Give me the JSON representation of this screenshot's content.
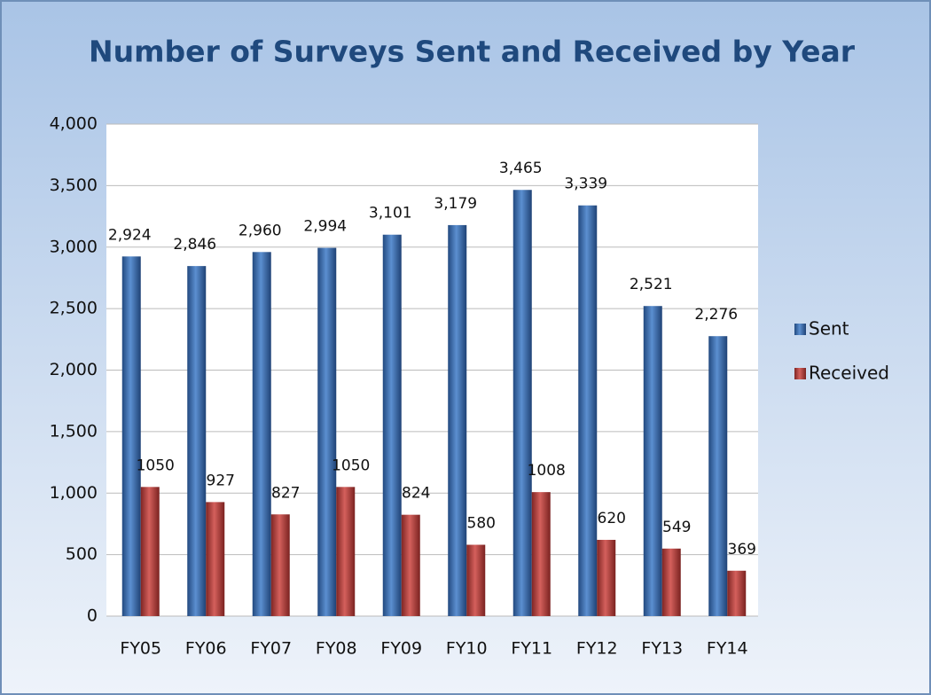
{
  "chart_data": {
    "type": "bar",
    "title": "Number of Surveys Sent and Received by Year",
    "categories": [
      "FY05",
      "FY06",
      "FY07",
      "FY08",
      "FY09",
      "FY10",
      "FY11",
      "FY12",
      "FY13",
      "FY14"
    ],
    "series": [
      {
        "name": "Sent",
        "color": "#3a6db0",
        "values": [
          2924,
          2846,
          2960,
          2994,
          3101,
          3179,
          3465,
          3339,
          2521,
          2276
        ],
        "value_labels": [
          "2,924",
          "2,846",
          "2,960",
          "2,994",
          "3,101",
          "3,179",
          "3,465",
          "3,339",
          "2,521",
          "2,276"
        ]
      },
      {
        "name": "Received",
        "color": "#b5403d",
        "values": [
          1050,
          927,
          827,
          1050,
          824,
          580,
          1008,
          620,
          549,
          369
        ]
      }
    ],
    "ylim": [
      0,
      4000
    ],
    "yticks": [
      0,
      {
        "value": 500,
        "label": "500"
      },
      {
        "value": 1000,
        "label": "1,000"
      },
      {
        "value": 1500,
        "label": "1,500"
      },
      {
        "value": 2000,
        "label": "2,000"
      },
      {
        "value": 2500,
        "label": "2,500"
      },
      {
        "value": 3000,
        "label": "3,000"
      },
      {
        "value": 3500,
        "label": "3,500"
      },
      {
        "value": 4000,
        "label": "4,000"
      }
    ],
    "grid": true,
    "legend": "right"
  }
}
